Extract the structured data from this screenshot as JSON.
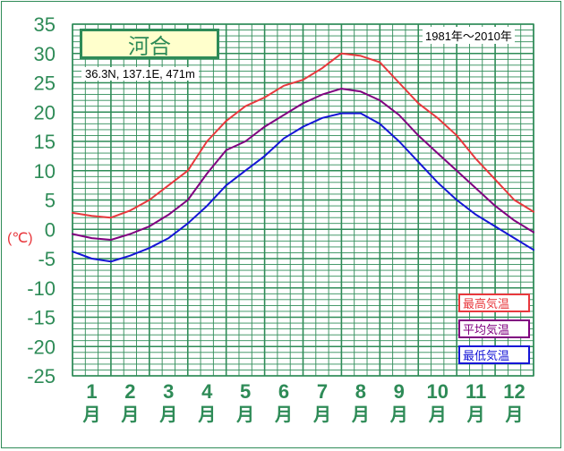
{
  "header": {
    "station_name": "河合",
    "coordinates": "36.3N,  137.1E,  471m",
    "period": "1981年〜2010年"
  },
  "colors": {
    "frame": "#2e8b57",
    "grid": "#2e8b57",
    "axis_text": "#2e8b57",
    "unit_text": "#e8383d",
    "title_bg": "#ffffcc",
    "max": "#e8383d",
    "avg": "#800080",
    "min": "#1515d6"
  },
  "chart_data": {
    "type": "line",
    "title": "",
    "xlabel": "",
    "ylabel": "(℃)",
    "ylim": [
      -25,
      35
    ],
    "grid": true,
    "legend_position": "bottom-right",
    "categories": [
      "1\n月",
      "2\n月",
      "3\n月",
      "4\n月",
      "5\n月",
      "6\n月",
      "7\n月",
      "8\n月",
      "9\n月",
      "10\n月",
      "11\n月",
      "12\n月"
    ],
    "y_ticks": [
      35,
      30,
      25,
      20,
      15,
      10,
      5,
      0,
      -5,
      -10,
      -15,
      -20,
      -25
    ],
    "x": [
      0.0,
      0.5,
      1.0,
      1.5,
      2.0,
      2.5,
      3.0,
      3.5,
      4.0,
      4.5,
      5.0,
      5.5,
      6.0,
      6.5,
      7.0,
      7.5,
      8.0,
      8.5,
      9.0,
      9.5,
      10.0,
      10.5,
      11.0,
      11.5,
      12.0
    ],
    "series": [
      {
        "name": "最高気温",
        "values": [
          2.8,
          2.3,
          2.0,
          3.2,
          5.0,
          7.5,
          10.0,
          15.0,
          18.5,
          21.0,
          22.5,
          24.5,
          25.5,
          27.5,
          30.0,
          29.6,
          28.5,
          25.0,
          21.5,
          19.0,
          16.0,
          12.0,
          8.5,
          5.0,
          3.0
        ]
      },
      {
        "name": "平均気温",
        "values": [
          -0.8,
          -1.5,
          -1.8,
          -0.8,
          0.5,
          2.5,
          5.0,
          9.5,
          13.5,
          15.0,
          17.5,
          19.5,
          21.5,
          23.0,
          24.0,
          23.5,
          22.0,
          19.5,
          16.0,
          13.0,
          10.0,
          7.0,
          4.0,
          1.5,
          -0.5
        ]
      },
      {
        "name": "最低気温",
        "values": [
          -3.8,
          -5.0,
          -5.5,
          -4.5,
          -3.2,
          -1.5,
          1.0,
          4.0,
          7.5,
          10.0,
          12.5,
          15.5,
          17.5,
          19.0,
          19.8,
          19.8,
          18.0,
          15.0,
          11.5,
          8.0,
          5.0,
          2.5,
          0.5,
          -1.5,
          -3.5
        ]
      }
    ]
  },
  "legend": {
    "items": [
      {
        "label": "最高気温"
      },
      {
        "label": "平均気温"
      },
      {
        "label": "最低気温"
      }
    ]
  }
}
